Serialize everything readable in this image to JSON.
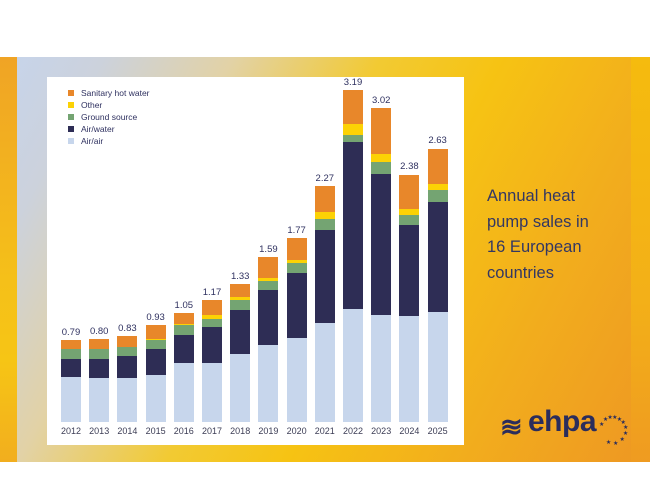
{
  "slide": {
    "title_lines": [
      "Annual heat",
      "pump sales in",
      "16 European",
      "countries"
    ]
  },
  "chart_data": {
    "type": "bar",
    "stacked": true,
    "title": "Annual heat pump sales in 16 European countries",
    "categories": [
      "2012",
      "2013",
      "2014",
      "2015",
      "2016",
      "2017",
      "2018",
      "2019",
      "2020",
      "2021",
      "2022",
      "2023",
      "2024",
      "2025"
    ],
    "series": [
      {
        "name": "Air/air",
        "color": "#c7d6ec",
        "values": [
          0.43,
          0.42,
          0.42,
          0.455,
          0.565,
          0.57,
          0.65,
          0.74,
          0.81,
          0.95,
          1.09,
          1.03,
          1.02,
          1.06
        ]
      },
      {
        "name": "Air/water",
        "color": "#2e2d55",
        "values": [
          0.175,
          0.19,
          0.215,
          0.25,
          0.27,
          0.34,
          0.43,
          0.53,
          0.62,
          0.9,
          1.6,
          1.36,
          0.87,
          1.06
        ]
      },
      {
        "name": "Ground source",
        "color": "#74a472",
        "values": [
          0.1,
          0.095,
          0.085,
          0.085,
          0.1,
          0.085,
          0.09,
          0.09,
          0.1,
          0.1,
          0.07,
          0.11,
          0.1,
          0.11
        ]
      },
      {
        "name": "Other",
        "color": "#fcd205",
        "values": [
          0.0,
          0.0,
          0.0,
          0.01,
          0.005,
          0.035,
          0.03,
          0.02,
          0.03,
          0.07,
          0.11,
          0.08,
          0.06,
          0.06
        ]
      },
      {
        "name": "Sanitary hot water",
        "color": "#e8872a",
        "values": [
          0.085,
          0.095,
          0.11,
          0.13,
          0.11,
          0.14,
          0.13,
          0.21,
          0.21,
          0.25,
          0.32,
          0.44,
          0.33,
          0.34
        ]
      }
    ],
    "totals": [
      "0.79",
      "0.80",
      "0.83",
      "0.93",
      "1.05",
      "1.17",
      "1.33",
      "1.59",
      "1.77",
      "2.27",
      "3.19",
      "3.02",
      "2.38",
      "2.63"
    ],
    "legend": [
      "Sanitary hot water",
      "Other",
      "Ground source",
      "Air/water",
      "Air/air"
    ],
    "legend_position": "top-left",
    "ylim": [
      0,
      3.3
    ],
    "grid": false,
    "y_axis_visible": false
  },
  "logo": {
    "brand": "ehpa",
    "wave_glyph": "≋",
    "star_glyph": "★",
    "star_count": 11
  },
  "colors": {
    "accent_gold": "#f6c313",
    "accent_orange": "#ee9723",
    "accent_blue": "#c6d4ec",
    "text_navy": "#333763",
    "panel_bg": "#ffffff"
  }
}
